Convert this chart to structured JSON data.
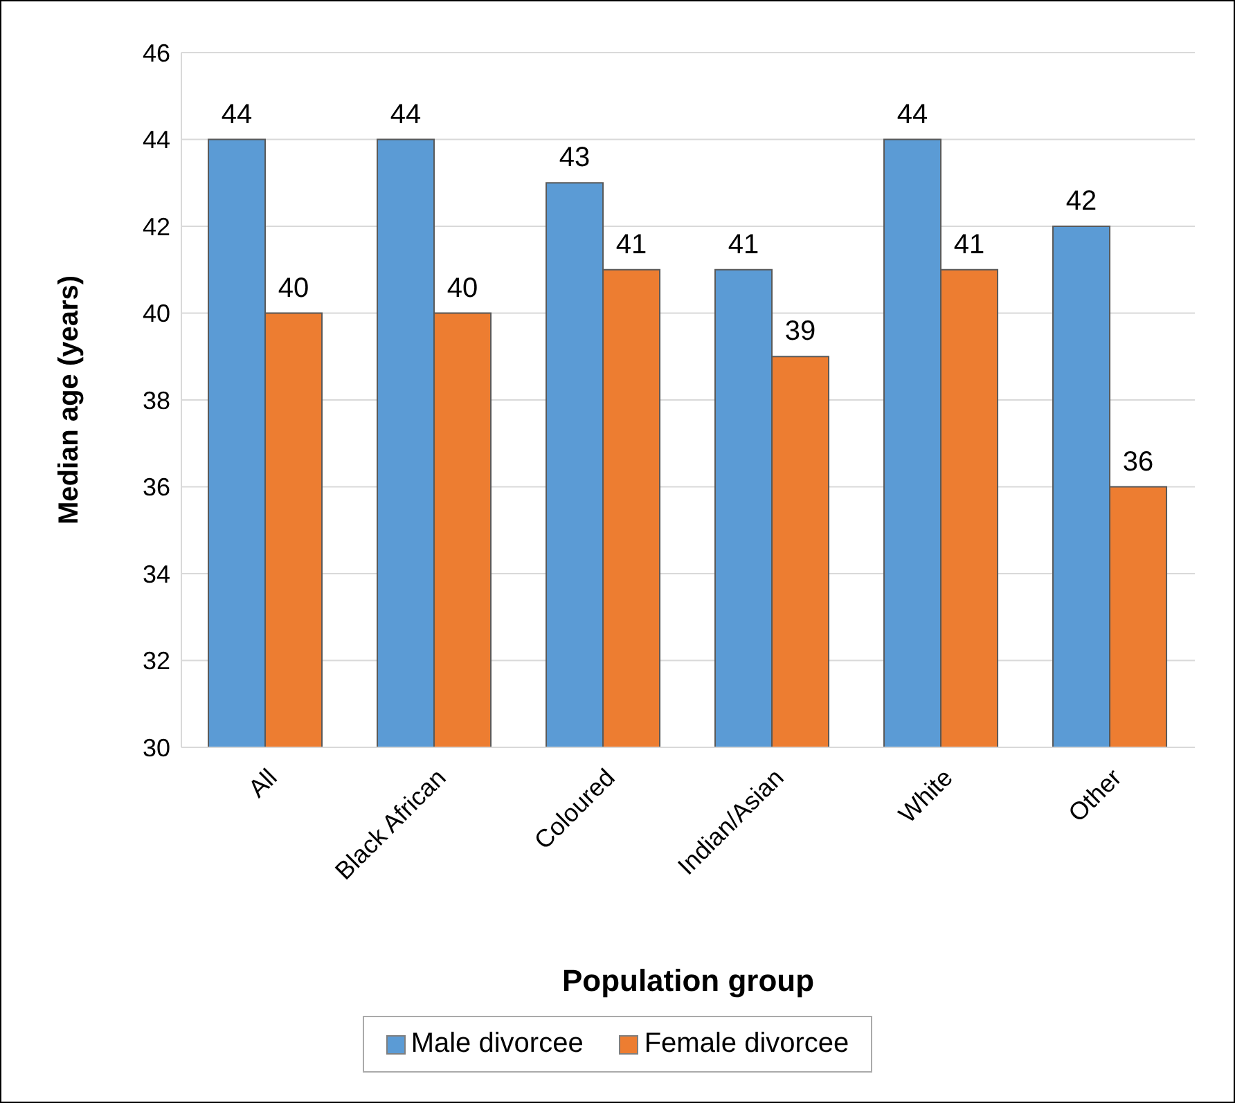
{
  "chart_data": {
    "type": "bar",
    "xlabel": "Population group",
    "ylabel": "Median age (years)",
    "categories": [
      "All",
      "Black African",
      "Coloured",
      "Indian/Asian",
      "White",
      "Other"
    ],
    "series": [
      {
        "name": "Male divorcee",
        "color": "#5b9bd5",
        "values": [
          44,
          44,
          43,
          41,
          44,
          42
        ]
      },
      {
        "name": "Female divorcee",
        "color": "#ed7d31",
        "values": [
          40,
          40,
          41,
          39,
          41,
          36
        ]
      }
    ],
    "ylim": [
      30,
      46
    ],
    "yticks": [
      30,
      32,
      34,
      36,
      38,
      40,
      42,
      44,
      46
    ],
    "grid": "y",
    "legend": "bottom",
    "data_labels": true
  }
}
